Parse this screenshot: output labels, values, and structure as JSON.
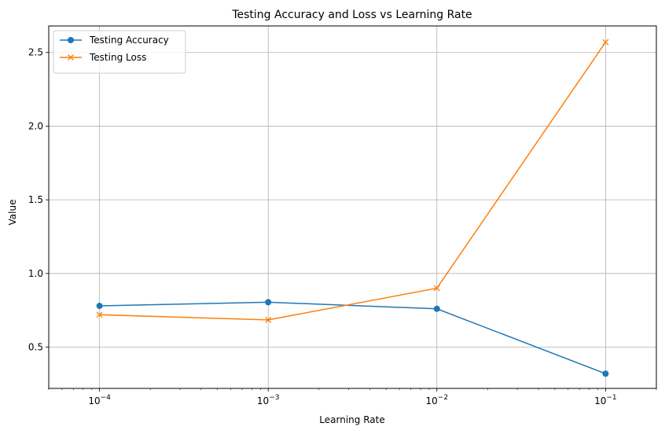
{
  "chart_data": {
    "type": "line",
    "title": "Testing Accuracy and Loss vs Learning Rate",
    "xlabel": "Learning Rate",
    "ylabel": "Value",
    "xscale": "log",
    "x": [
      0.0001,
      0.001,
      0.01,
      0.1
    ],
    "xlim": [
      5e-05,
      0.2
    ],
    "ylim": [
      0.22,
      2.68
    ],
    "x_ticks": [
      {
        "value": 0.0001,
        "base": "10",
        "exp": "−4"
      },
      {
        "value": 0.001,
        "base": "10",
        "exp": "−3"
      },
      {
        "value": 0.01,
        "base": "10",
        "exp": "−2"
      },
      {
        "value": 0.1,
        "base": "10",
        "exp": "−1"
      }
    ],
    "y_ticks": [
      {
        "value": 0.5,
        "label": "0.5"
      },
      {
        "value": 1.0,
        "label": "1.0"
      },
      {
        "value": 1.5,
        "label": "1.5"
      },
      {
        "value": 2.0,
        "label": "2.0"
      },
      {
        "value": 2.5,
        "label": "2.5"
      }
    ],
    "grid": true,
    "legend_position": "top-left",
    "series": [
      {
        "name": "Testing Accuracy",
        "values": [
          0.78,
          0.805,
          0.76,
          0.32
        ],
        "color": "#1f77b4",
        "marker": "circle"
      },
      {
        "name": "Testing Loss",
        "values": [
          0.72,
          0.685,
          0.9,
          2.57
        ],
        "color": "#ff7f0e",
        "marker": "x"
      }
    ]
  }
}
